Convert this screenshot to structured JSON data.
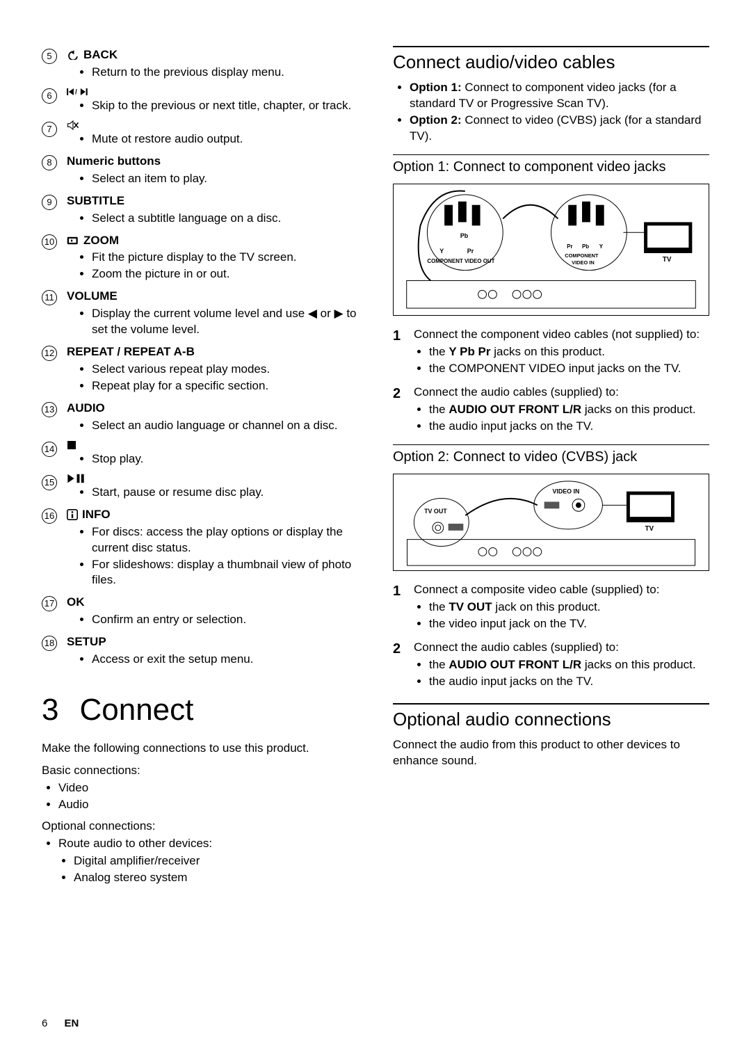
{
  "left": {
    "items": [
      {
        "n": "5",
        "label": "BACK",
        "icon": "back",
        "bullets": [
          "Return to the previous display menu."
        ]
      },
      {
        "n": "6",
        "label": "",
        "icon": "skip",
        "bullets": [
          "Skip to the previous or next title, chapter, or track."
        ]
      },
      {
        "n": "7",
        "label": "",
        "icon": "mute",
        "bullets": [
          "Mute ot restore audio output."
        ]
      },
      {
        "n": "8",
        "label": "Numeric buttons",
        "icon": "",
        "bullets": [
          "Select an item to play."
        ]
      },
      {
        "n": "9",
        "label": "SUBTITLE",
        "icon": "",
        "bullets": [
          "Select a subtitle language on a disc."
        ]
      },
      {
        "n": "10",
        "label": "ZOOM",
        "icon": "zoom",
        "bullets": [
          "Fit the picture display to the TV screen.",
          "Zoom the picture in or out."
        ]
      },
      {
        "n": "11",
        "label": "VOLUME",
        "icon": "",
        "bullets": [
          "Display the current volume level and use ◀ or ▶ to set the volume level."
        ]
      },
      {
        "n": "12",
        "label": "REPEAT / REPEAT A-B",
        "icon": "",
        "bullets": [
          "Select various repeat play modes.",
          "Repeat play for a specific section."
        ]
      },
      {
        "n": "13",
        "label": "AUDIO",
        "icon": "",
        "bullets": [
          "Select an audio language or channel on a disc."
        ]
      },
      {
        "n": "14",
        "label": "",
        "icon": "stop",
        "bullets": [
          "Stop play."
        ]
      },
      {
        "n": "15",
        "label": "",
        "icon": "playpause",
        "bullets": [
          "Start, pause or resume disc play."
        ]
      },
      {
        "n": "16",
        "label": "INFO",
        "icon": "info",
        "bullets": [
          "For discs: access the play options or display the current disc status.",
          "For slideshows: display a thumbnail view of photo files."
        ]
      },
      {
        "n": "17",
        "label": "OK",
        "icon": "",
        "bullets": [
          "Confirm an entry or selection."
        ]
      },
      {
        "n": "18",
        "label": "SETUP",
        "icon": "",
        "bullets": [
          "Access or exit the setup menu."
        ]
      }
    ],
    "chapter_num": "3",
    "chapter_title": "Connect",
    "intro": "Make the following connections to use this product.",
    "basic_label": "Basic connections:",
    "basic_items": [
      "Video",
      "Audio"
    ],
    "optional_label": "Optional connections:",
    "optional_items": [
      "Route audio to other devices:"
    ],
    "optional_sub": [
      "Digital amplifier/receiver",
      "Analog stereo system"
    ]
  },
  "right": {
    "section1": "Connect audio/video cables",
    "option1_lead": "Option 1:",
    "option1_text": " Connect to component video jacks (for a standard TV or Progressive Scan TV).",
    "option2_lead": "Option 2:",
    "option2_text": " Connect to video (CVBS) jack (for a standard TV).",
    "sub1": "Option 1: Connect to component video jacks",
    "diagram1_labels": {
      "a": "Pb",
      "b": "Y   Pr",
      "c": "COMPONENT VIDEO OUT",
      "d": "Pr  Pb  Y",
      "e": "COMPONENT VIDEO IN",
      "tv": "TV"
    },
    "step1_1": "Connect the component video cables (not supplied) to:",
    "step1_1_sub": [
      "the Y Pb Pr jacks on this product.",
      "the COMPONENT VIDEO input jacks on the TV."
    ],
    "step1_1_bold": "Y Pb Pr",
    "step1_2": "Connect the audio cables (supplied) to:",
    "step1_2_sub": [
      "the AUDIO OUT FRONT L/R jacks on this product.",
      "the audio input jacks on the TV."
    ],
    "step1_2_bold": "AUDIO OUT FRONT L/R",
    "sub2": "Option 2: Connect to video (CVBS) jack",
    "diagram2_labels": {
      "a": "TV OUT",
      "b": "VIDEO IN",
      "tv": "TV"
    },
    "step2_1": "Connect a composite video cable (supplied) to:",
    "step2_1_sub": [
      "the TV OUT jack on this product.",
      "the video input jack on the TV."
    ],
    "step2_1_bold": "TV OUT",
    "step2_2": "Connect the audio cables (supplied) to:",
    "step2_2_sub": [
      "the AUDIO OUT FRONT L/R jacks on this product.",
      "the audio input jacks on the TV."
    ],
    "step2_2_bold": "AUDIO OUT FRONT L/R",
    "section2": "Optional audio connections",
    "section2_text": "Connect the audio from this product to other devices to enhance sound."
  },
  "footer": {
    "page": "6",
    "lang": "EN"
  },
  "colors": {
    "text": "#000000",
    "bg": "#ffffff"
  },
  "typography": {
    "body_pt": 13,
    "h2_pt": 20,
    "h1_pt": 33
  }
}
